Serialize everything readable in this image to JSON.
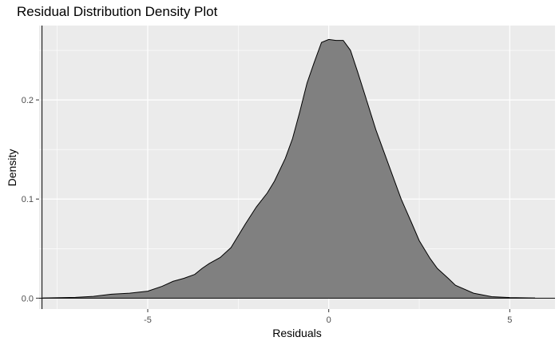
{
  "chart_data": {
    "type": "area",
    "title": "Residual Distribution Density Plot",
    "xlabel": "Residuals",
    "ylabel": "Density",
    "xlim": [
      -8.0,
      6.25
    ],
    "ylim": [
      -0.011,
      0.275
    ],
    "x_ticks": [
      -5,
      0,
      5
    ],
    "x_tick_labels": [
      "-5",
      "0",
      "5"
    ],
    "y_ticks": [
      0.0,
      0.1,
      0.2
    ],
    "y_tick_labels": [
      "0.0",
      "0.1",
      "0.2"
    ],
    "vline_x": -7.92,
    "hline_y": 0,
    "grid": true,
    "legend": "none",
    "series": [
      {
        "fill": "#808080",
        "stroke": "#000000",
        "x": [
          -7.9,
          -7.0,
          -6.5,
          -6.0,
          -5.5,
          -5.0,
          -4.6,
          -4.3,
          -4.0,
          -3.7,
          -3.5,
          -3.3,
          -3.0,
          -2.7,
          -2.5,
          -2.3,
          -2.0,
          -1.7,
          -1.5,
          -1.2,
          -1.0,
          -0.8,
          -0.6,
          -0.4,
          -0.2,
          0.0,
          0.2,
          0.4,
          0.6,
          0.8,
          1.0,
          1.3,
          1.5,
          1.8,
          2.0,
          2.3,
          2.5,
          2.8,
          3.0,
          3.3,
          3.5,
          4.0,
          4.5,
          5.0,
          5.7
        ],
        "y": [
          0.0002,
          0.0008,
          0.0018,
          0.004,
          0.005,
          0.007,
          0.012,
          0.017,
          0.02,
          0.024,
          0.03,
          0.035,
          0.041,
          0.051,
          0.063,
          0.075,
          0.092,
          0.106,
          0.118,
          0.141,
          0.161,
          0.188,
          0.217,
          0.238,
          0.258,
          0.261,
          0.26,
          0.26,
          0.25,
          0.228,
          0.205,
          0.17,
          0.15,
          0.12,
          0.1,
          0.075,
          0.058,
          0.04,
          0.03,
          0.02,
          0.013,
          0.005,
          0.0015,
          0.0006,
          0.0002
        ]
      }
    ]
  }
}
